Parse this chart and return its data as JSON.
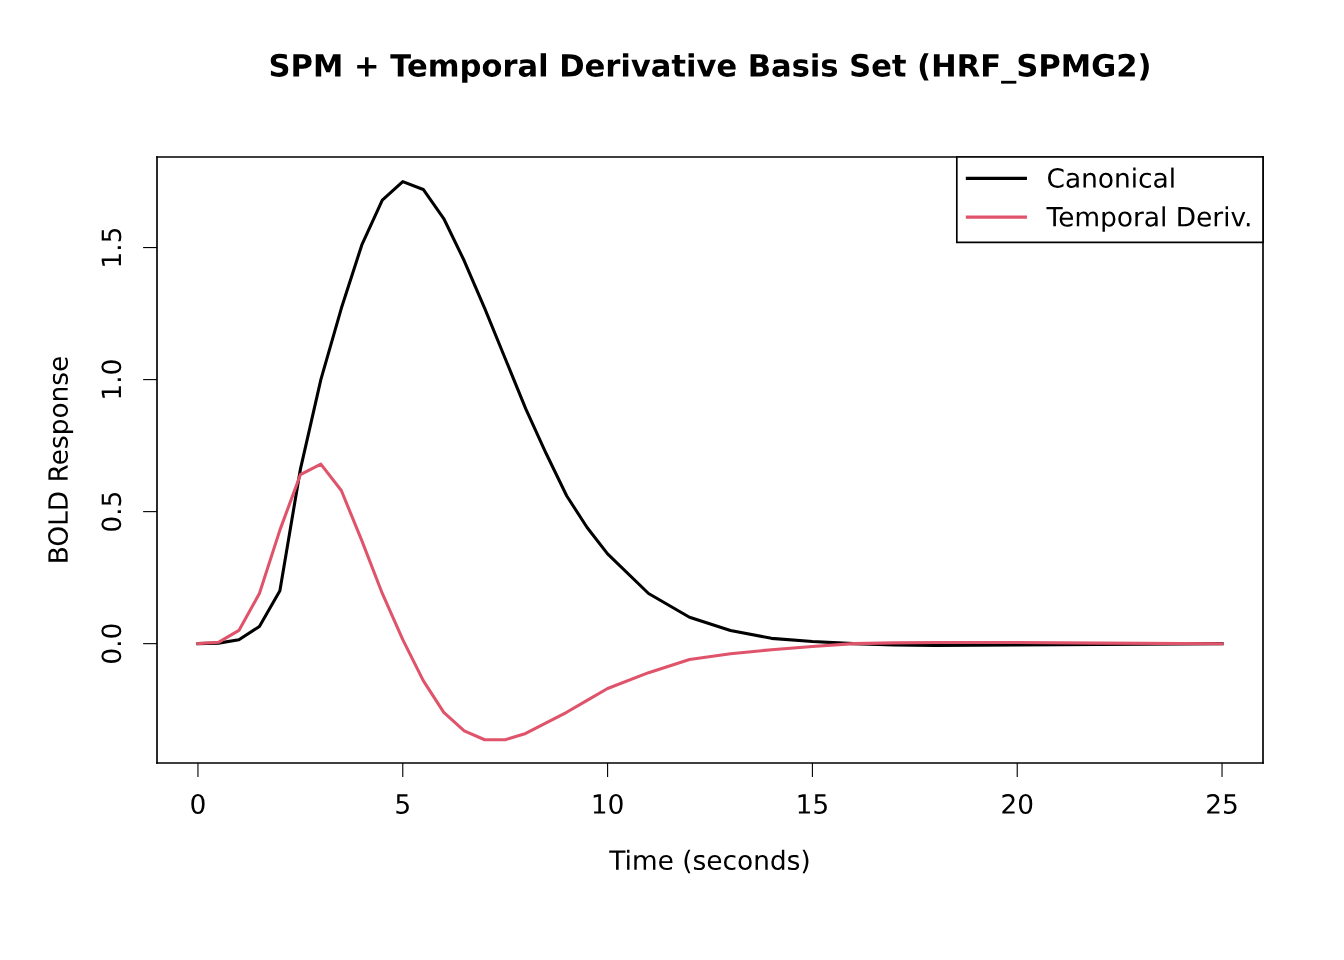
{
  "chart_data": {
    "type": "line",
    "title": "SPM + Temporal Derivative Basis Set (HRF_SPMG2)",
    "xlabel": "Time (seconds)",
    "ylabel": "BOLD Response",
    "x": [
      0,
      0.5,
      1,
      1.5,
      2,
      2.5,
      3,
      3.5,
      4,
      4.5,
      5,
      5.5,
      6,
      6.5,
      7,
      7.5,
      8,
      8.5,
      9,
      9.5,
      10,
      11,
      12,
      13,
      14,
      15,
      16,
      17,
      18,
      20,
      22,
      25
    ],
    "series": [
      {
        "name": "Canonical",
        "color": "#000000",
        "values": [
          0,
          0.002,
          0.015,
          0.065,
          0.2,
          0.66,
          1.0,
          1.27,
          1.51,
          1.68,
          1.75,
          1.72,
          1.61,
          1.45,
          1.27,
          1.08,
          0.89,
          0.72,
          0.56,
          0.44,
          0.34,
          0.19,
          0.1,
          0.05,
          0.02,
          0.008,
          0,
          -0.005,
          -0.007,
          -0.005,
          -0.003,
          0
        ]
      },
      {
        "name": "Temporal Deriv.",
        "color": "#df536b",
        "values": [
          0,
          0.005,
          0.05,
          0.19,
          0.43,
          0.64,
          0.68,
          0.58,
          0.39,
          0.19,
          0.015,
          -0.14,
          -0.26,
          -0.33,
          -0.364,
          -0.364,
          -0.34,
          -0.3,
          -0.26,
          -0.215,
          -0.17,
          -0.11,
          -0.06,
          -0.038,
          -0.023,
          -0.011,
          0,
          0.003,
          0.004,
          0.004,
          0.002,
          0
        ]
      }
    ],
    "xlim": [
      -1,
      26
    ],
    "ylim": [
      -0.452,
      1.843
    ],
    "xticks": [
      0,
      5,
      10,
      15,
      20,
      25
    ],
    "yticks": [
      {
        "value": 0,
        "label": "0.0"
      },
      {
        "value": 0.5,
        "label": "0.5"
      },
      {
        "value": 1,
        "label": "1.0"
      },
      {
        "value": 1.5,
        "label": "1.5"
      }
    ],
    "legend": "top right",
    "grid": false,
    "marker": "none",
    "line_style": "solid"
  }
}
